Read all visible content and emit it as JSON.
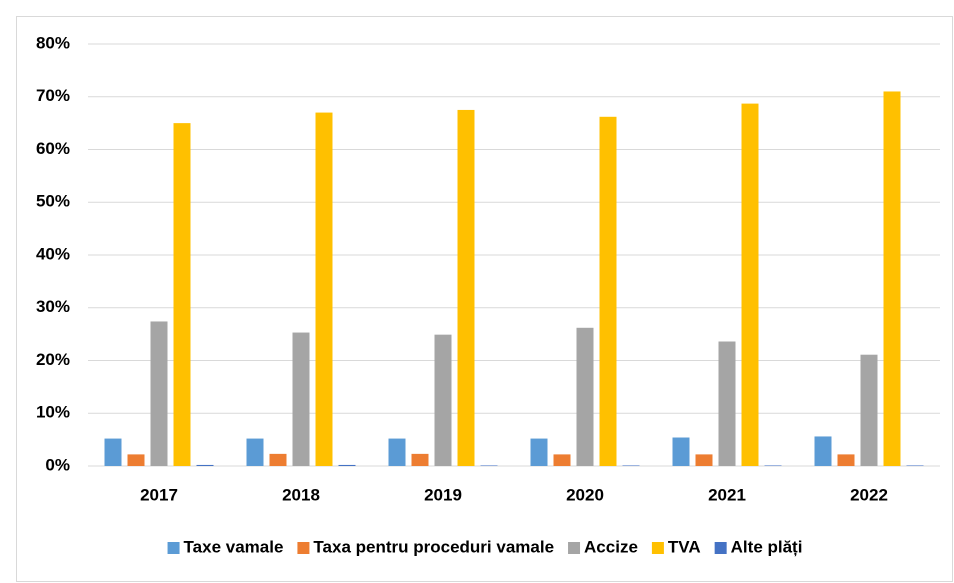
{
  "chart_data": {
    "type": "bar",
    "categories": [
      "2017",
      "2018",
      "2019",
      "2020",
      "2021",
      "2022"
    ],
    "series": [
      {
        "name": "Taxe vamale",
        "color": "#5b9bd5",
        "values": [
          5.2,
          5.2,
          5.2,
          5.2,
          5.4,
          5.6
        ]
      },
      {
        "name": "Taxa pentru proceduri vamale",
        "color": "#ed7d31",
        "values": [
          2.2,
          2.3,
          2.3,
          2.2,
          2.2,
          2.2
        ]
      },
      {
        "name": "Accize",
        "color": "#a5a5a5",
        "values": [
          27.4,
          25.3,
          24.9,
          26.2,
          23.6,
          21.1
        ]
      },
      {
        "name": "TVA",
        "color": "#ffc000",
        "values": [
          65.0,
          67.0,
          67.5,
          66.2,
          68.7,
          71.0
        ]
      },
      {
        "name": "Alte plăți",
        "color": "#4472c4",
        "values": [
          0.2,
          0.2,
          0.1,
          0.1,
          0.1,
          0.1
        ]
      }
    ],
    "ylim": [
      0,
      80
    ],
    "yticks": [
      {
        "value": 0,
        "label": "0%"
      },
      {
        "value": 10,
        "label": "10%"
      },
      {
        "value": 20,
        "label": "20%"
      },
      {
        "value": 30,
        "label": "30%"
      },
      {
        "value": 40,
        "label": "40%"
      },
      {
        "value": 50,
        "label": "50%"
      },
      {
        "value": 60,
        "label": "60%"
      },
      {
        "value": 70,
        "label": "70%"
      },
      {
        "value": 80,
        "label": "80%"
      }
    ],
    "grid": true,
    "legend": "bottom"
  }
}
